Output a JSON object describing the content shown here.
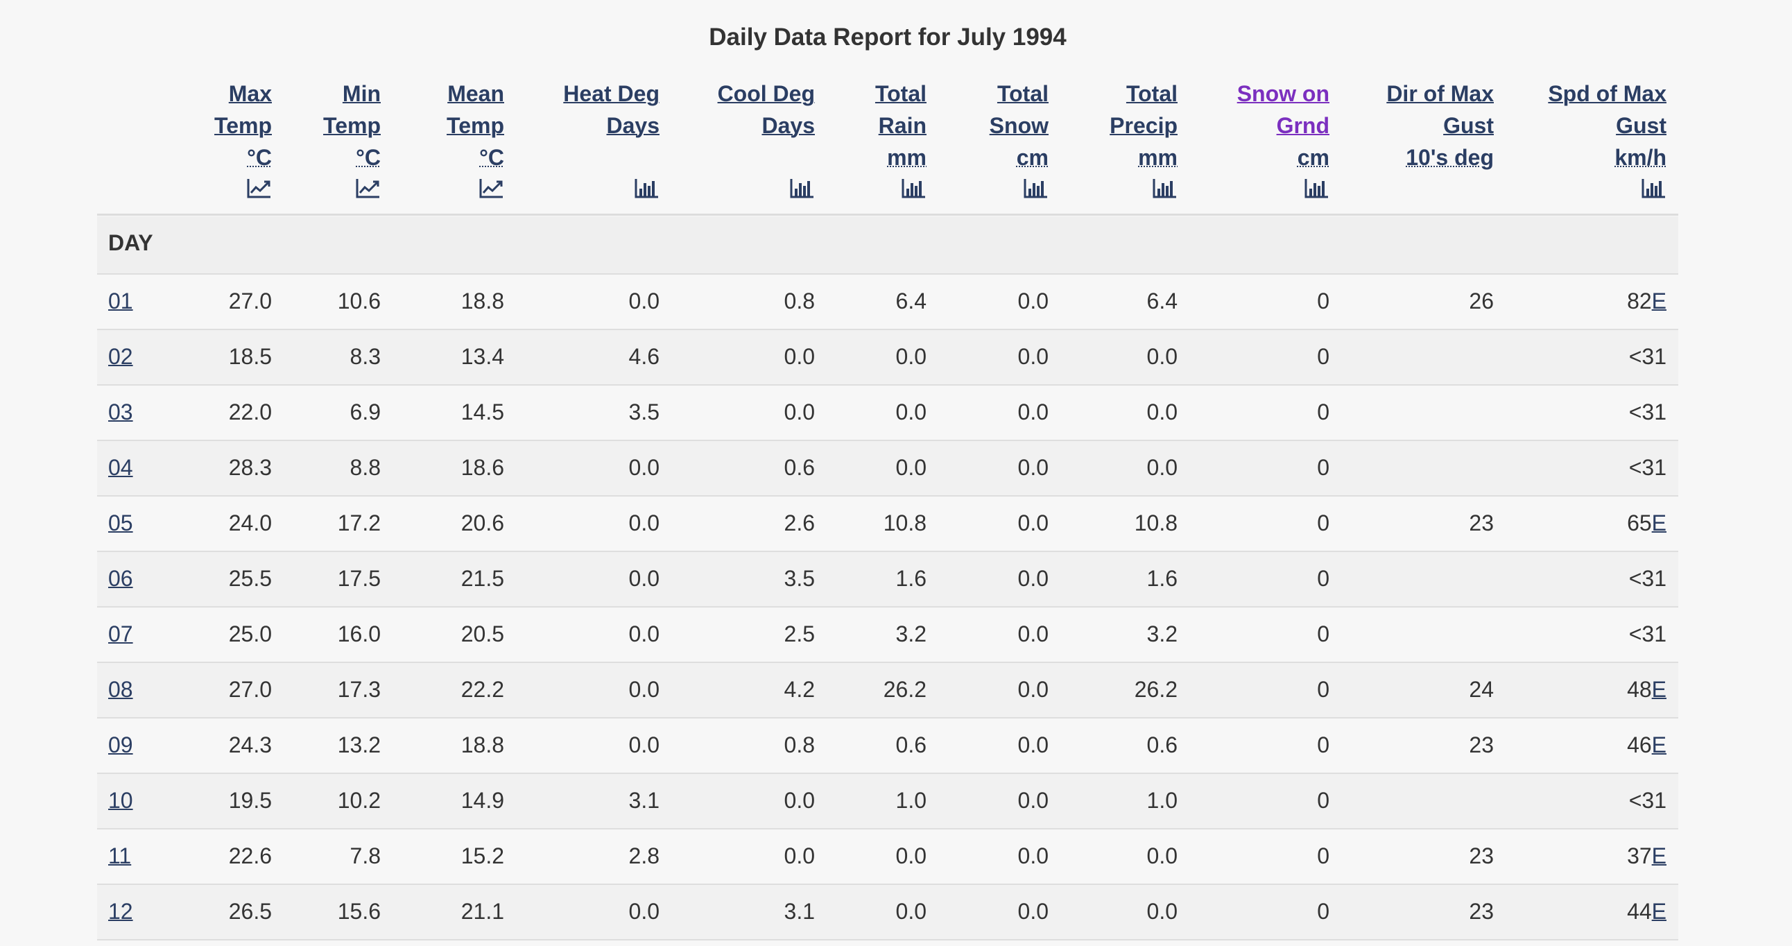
{
  "title": "Daily Data Report for July 1994",
  "headers": [
    {
      "lines": [
        "Max",
        "Temp"
      ],
      "unit": "°C",
      "icon": "line-chart-icon"
    },
    {
      "lines": [
        "Min",
        "Temp"
      ],
      "unit": "°C",
      "icon": "line-chart-icon"
    },
    {
      "lines": [
        "Mean",
        "Temp"
      ],
      "unit": "°C",
      "icon": "line-chart-icon"
    },
    {
      "lines": [
        "Heat Deg",
        "Days"
      ],
      "unit": "",
      "icon": "bar-chart-icon"
    },
    {
      "lines": [
        "Cool Deg",
        "Days"
      ],
      "unit": "",
      "icon": "bar-chart-icon"
    },
    {
      "lines": [
        "Total",
        "Rain"
      ],
      "unit": "mm",
      "icon": "bar-chart-icon"
    },
    {
      "lines": [
        "Total",
        "Snow"
      ],
      "unit": "cm",
      "icon": "bar-chart-icon"
    },
    {
      "lines": [
        "Total",
        "Precip"
      ],
      "unit": "mm",
      "icon": "bar-chart-icon"
    },
    {
      "lines": [
        "Snow on",
        "Grnd"
      ],
      "unit": "cm",
      "icon": "bar-chart-icon"
    },
    {
      "lines": [
        "Dir of Max",
        "Gust"
      ],
      "unit": "10's deg",
      "icon": ""
    },
    {
      "lines": [
        "Spd of Max",
        "Gust"
      ],
      "unit": "km/h",
      "icon": "bar-chart-icon"
    }
  ],
  "day_label": "DAY",
  "rows": [
    {
      "day": "01",
      "values": [
        "27.0",
        "10.6",
        "18.8",
        "0.0",
        "0.8",
        "6.4",
        "0.0",
        "6.4",
        "0",
        "26",
        "82"
      ],
      "flag": "E"
    },
    {
      "day": "02",
      "values": [
        "18.5",
        "8.3",
        "13.4",
        "4.6",
        "0.0",
        "0.0",
        "0.0",
        "0.0",
        "0",
        "",
        "<31"
      ],
      "flag": ""
    },
    {
      "day": "03",
      "values": [
        "22.0",
        "6.9",
        "14.5",
        "3.5",
        "0.0",
        "0.0",
        "0.0",
        "0.0",
        "0",
        "",
        "<31"
      ],
      "flag": ""
    },
    {
      "day": "04",
      "values": [
        "28.3",
        "8.8",
        "18.6",
        "0.0",
        "0.6",
        "0.0",
        "0.0",
        "0.0",
        "0",
        "",
        "<31"
      ],
      "flag": ""
    },
    {
      "day": "05",
      "values": [
        "24.0",
        "17.2",
        "20.6",
        "0.0",
        "2.6",
        "10.8",
        "0.0",
        "10.8",
        "0",
        "23",
        "65"
      ],
      "flag": "E"
    },
    {
      "day": "06",
      "values": [
        "25.5",
        "17.5",
        "21.5",
        "0.0",
        "3.5",
        "1.6",
        "0.0",
        "1.6",
        "0",
        "",
        "<31"
      ],
      "flag": ""
    },
    {
      "day": "07",
      "values": [
        "25.0",
        "16.0",
        "20.5",
        "0.0",
        "2.5",
        "3.2",
        "0.0",
        "3.2",
        "0",
        "",
        "<31"
      ],
      "flag": ""
    },
    {
      "day": "08",
      "values": [
        "27.0",
        "17.3",
        "22.2",
        "0.0",
        "4.2",
        "26.2",
        "0.0",
        "26.2",
        "0",
        "24",
        "48"
      ],
      "flag": "E"
    },
    {
      "day": "09",
      "values": [
        "24.3",
        "13.2",
        "18.8",
        "0.0",
        "0.8",
        "0.6",
        "0.0",
        "0.6",
        "0",
        "23",
        "46"
      ],
      "flag": "E"
    },
    {
      "day": "10",
      "values": [
        "19.5",
        "10.2",
        "14.9",
        "3.1",
        "0.0",
        "1.0",
        "0.0",
        "1.0",
        "0",
        "",
        "<31"
      ],
      "flag": ""
    },
    {
      "day": "11",
      "values": [
        "22.6",
        "7.8",
        "15.2",
        "2.8",
        "0.0",
        "0.0",
        "0.0",
        "0.0",
        "0",
        "23",
        "37"
      ],
      "flag": "E"
    },
    {
      "day": "12",
      "values": [
        "26.5",
        "15.6",
        "21.1",
        "0.0",
        "3.1",
        "0.0",
        "0.0",
        "0.0",
        "0",
        "23",
        "44"
      ],
      "flag": "E"
    }
  ]
}
